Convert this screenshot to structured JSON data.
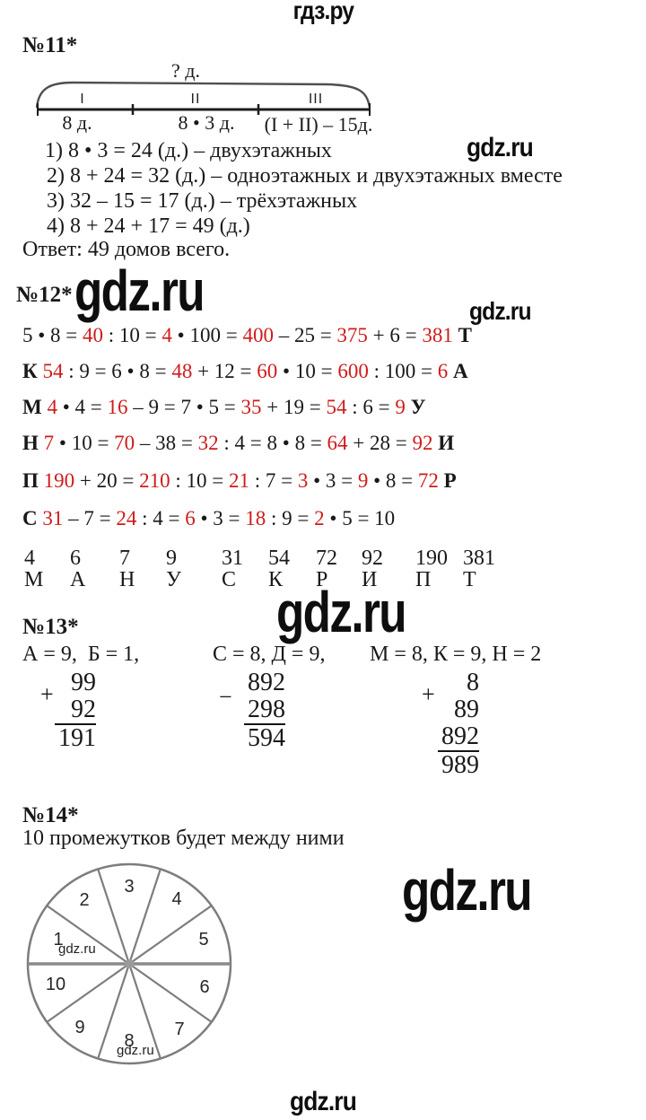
{
  "site": {
    "header_cyrillic": "гдз.ру",
    "footer_latin": "gdz.ru",
    "watermark": "gdz.ru"
  },
  "colors": {
    "answer_red": "#cf1b1b",
    "text_black": "#191919",
    "circle_gray": "#7d7d7d"
  },
  "task11": {
    "title": "№11*",
    "diagram": {
      "top_label": "? д.",
      "segments": [
        {
          "roman": "I",
          "label": "8 д."
        },
        {
          "roman": "II",
          "label": "8 • 3 д."
        },
        {
          "roman": "III",
          "label": "(I + II) – 15д."
        }
      ]
    },
    "steps": [
      "1) 8 • 3 = 24 (д.) – двухэтажных",
      "2) 8 + 24 = 32 (д.) – одноэтажных и двухэтажных вместе",
      "3) 32 – 15 = 17 (д.) – трёхэтажных",
      "4) 8 + 24 + 17 = 49 (д.)"
    ],
    "answer": "Ответ: 49 домов всего."
  },
  "task12": {
    "title": "№12*",
    "equations": [
      {
        "parts": [
          {
            "t": "5 • 8 = ",
            "s": "k"
          },
          {
            "t": "40",
            "s": "r"
          },
          {
            "t": " : 10 = ",
            "s": "k"
          },
          {
            "t": "4",
            "s": "r"
          },
          {
            "t": " • 100 = ",
            "s": "k"
          },
          {
            "t": "400",
            "s": "r"
          },
          {
            "t": " – 25 = ",
            "s": "k"
          },
          {
            "t": "375",
            "s": "r"
          },
          {
            "t": " + 6 = ",
            "s": "k"
          },
          {
            "t": "381",
            "s": "r"
          },
          {
            "t": " Т",
            "s": "b"
          }
        ]
      },
      {
        "parts": [
          {
            "t": "К ",
            "s": "b"
          },
          {
            "t": "54",
            "s": "r"
          },
          {
            "t": " : 9 = 6 • 8 = ",
            "s": "k"
          },
          {
            "t": "48",
            "s": "r"
          },
          {
            "t": " + 12 = ",
            "s": "k"
          },
          {
            "t": "60",
            "s": "r"
          },
          {
            "t": " • 10 = ",
            "s": "k"
          },
          {
            "t": "600",
            "s": "r"
          },
          {
            "t": " : 100 = ",
            "s": "k"
          },
          {
            "t": "6",
            "s": "r"
          },
          {
            "t": " А",
            "s": "b"
          }
        ]
      },
      {
        "parts": [
          {
            "t": "М ",
            "s": "b"
          },
          {
            "t": "4",
            "s": "r"
          },
          {
            "t": " • 4 = ",
            "s": "k"
          },
          {
            "t": "16",
            "s": "r"
          },
          {
            "t": " – 9 = 7 • 5 = ",
            "s": "k"
          },
          {
            "t": "35",
            "s": "r"
          },
          {
            "t": " + 19 = ",
            "s": "k"
          },
          {
            "t": "54",
            "s": "r"
          },
          {
            "t": " : 6 = ",
            "s": "k"
          },
          {
            "t": "9",
            "s": "r"
          },
          {
            "t": " У",
            "s": "b"
          }
        ]
      },
      {
        "parts": [
          {
            "t": "Н ",
            "s": "b"
          },
          {
            "t": "7",
            "s": "r"
          },
          {
            "t": " • 10 = ",
            "s": "k"
          },
          {
            "t": "70",
            "s": "r"
          },
          {
            "t": " – 38 = ",
            "s": "k"
          },
          {
            "t": "32",
            "s": "r"
          },
          {
            "t": " : 4 = 8 • 8 = ",
            "s": "k"
          },
          {
            "t": "64",
            "s": "r"
          },
          {
            "t": " + 28 = ",
            "s": "k"
          },
          {
            "t": "92",
            "s": "r"
          },
          {
            "t": " И",
            "s": "b"
          }
        ]
      },
      {
        "parts": [
          {
            "t": "П ",
            "s": "b"
          },
          {
            "t": "190",
            "s": "r"
          },
          {
            "t": " + 20 = ",
            "s": "k"
          },
          {
            "t": "210",
            "s": "r"
          },
          {
            "t": " : 10 = ",
            "s": "k"
          },
          {
            "t": "21",
            "s": "r"
          },
          {
            "t": " : 7 = ",
            "s": "k"
          },
          {
            "t": "3",
            "s": "r"
          },
          {
            "t": " • 3 = ",
            "s": "k"
          },
          {
            "t": "9",
            "s": "r"
          },
          {
            "t": " • 8 = ",
            "s": "k"
          },
          {
            "t": "72",
            "s": "r"
          },
          {
            "t": " Р",
            "s": "b"
          }
        ]
      },
      {
        "parts": [
          {
            "t": "С ",
            "s": "b"
          },
          {
            "t": "31",
            "s": "r"
          },
          {
            "t": " – 7 = ",
            "s": "k"
          },
          {
            "t": "24",
            "s": "r"
          },
          {
            "t": " : 4 = ",
            "s": "k"
          },
          {
            "t": "6",
            "s": "r"
          },
          {
            "t": " • 3 = ",
            "s": "k"
          },
          {
            "t": "18",
            "s": "r"
          },
          {
            "t": " : 9 = ",
            "s": "k"
          },
          {
            "t": "2",
            "s": "r"
          },
          {
            "t": " • 5 = 10",
            "s": "k"
          }
        ]
      }
    ],
    "table": {
      "numbers": [
        "4",
        "6",
        "7",
        "9",
        "31",
        "54",
        "72",
        "92",
        "190",
        "381"
      ],
      "letters": [
        "М",
        "А",
        "Н",
        "У",
        "С",
        "К",
        "Р",
        "И",
        "П",
        "Т"
      ]
    }
  },
  "task13": {
    "title": "№13*",
    "columns": [
      {
        "key": "А = 9,  Б = 1,",
        "op": "+",
        "addends": [
          "99",
          "92"
        ],
        "result": "191"
      },
      {
        "key": "С = 8, Д = 9,",
        "op": "−",
        "addends": [
          "892",
          "298"
        ],
        "result": "594"
      },
      {
        "key": "М = 8, К = 9, Н = 2",
        "op": "+",
        "addends": [
          "8",
          "89",
          "892"
        ],
        "result": "989"
      }
    ]
  },
  "task14": {
    "title": "№14*",
    "text": "10 промежутков будет между ними",
    "circle": {
      "sectors": [
        "1",
        "2",
        "3",
        "4",
        "5",
        "6",
        "7",
        "8",
        "9",
        "10"
      ]
    }
  }
}
